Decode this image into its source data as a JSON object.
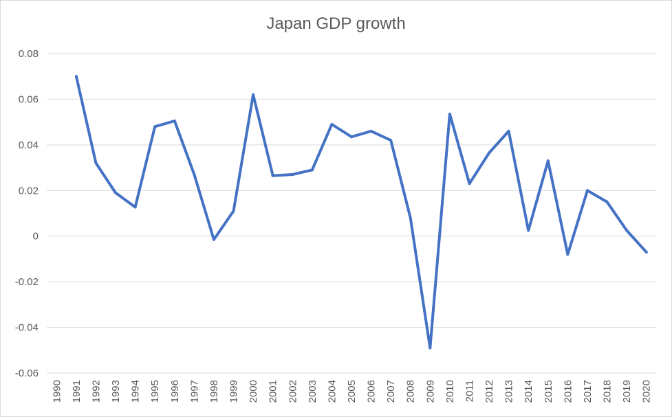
{
  "chart_data": {
    "type": "line",
    "title": "Japan GDP growth",
    "xlabel": "",
    "ylabel": "",
    "categories": [
      "1990",
      "1991",
      "1992",
      "1993",
      "1994",
      "1995",
      "1996",
      "1997",
      "1998",
      "1999",
      "2000",
      "2001",
      "2002",
      "2003",
      "2004",
      "2005",
      "2006",
      "2007",
      "2008",
      "2009",
      "2010",
      "2011",
      "2012",
      "2013",
      "2014",
      "2015",
      "2016",
      "2017",
      "2018",
      "2019",
      "2020"
    ],
    "series": [
      {
        "values": [
          null,
          0.07,
          0.032,
          0.019,
          0.0127,
          0.048,
          0.0505,
          0.027,
          -0.0015,
          0.011,
          0.062,
          0.0265,
          0.027,
          0.029,
          0.049,
          0.0435,
          0.046,
          0.042,
          0.008,
          -0.049,
          0.0535,
          0.023,
          0.0365,
          0.046,
          0.0025,
          0.033,
          -0.008,
          0.02,
          0.015,
          0.0025,
          -0.007
        ],
        "color": "#4472c4"
      }
    ],
    "ylim": [
      -0.06,
      0.08
    ],
    "yticks": [
      "0.08",
      "0.06",
      "0.04",
      "0.02",
      "0",
      "-0.02",
      "-0.04",
      "-0.06"
    ],
    "ytick_values": [
      0.08,
      0.06,
      0.04,
      0.02,
      0,
      -0.02,
      -0.04,
      -0.06
    ],
    "grid": true,
    "legend": "none"
  }
}
